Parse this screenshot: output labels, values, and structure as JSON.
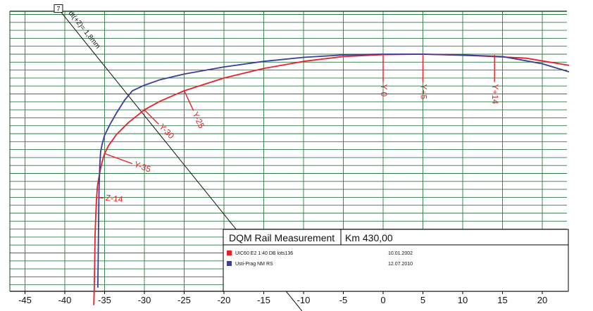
{
  "chart_data": {
    "type": "line",
    "x_ticks": [
      -45,
      -40,
      -35,
      -30,
      -25,
      -20,
      -15,
      -10,
      -5,
      0,
      5,
      10,
      15,
      20
    ],
    "xlim": [
      -46.5,
      23.4
    ],
    "ylim": [
      -32.5,
      5.5
    ],
    "x_gridlines": [
      -45,
      -40,
      -35,
      -30,
      -25,
      -20,
      -15,
      -10,
      -5,
      0,
      5,
      10,
      15,
      20
    ],
    "y_gridlines": [
      5,
      4,
      3,
      2,
      1,
      0,
      -1,
      -2,
      -3,
      -4,
      -5,
      -6,
      -7,
      -8,
      -9,
      -10,
      -11,
      -12,
      -13,
      -14,
      -15,
      -16,
      -17,
      -18,
      -19,
      -20,
      -21,
      -22,
      -23,
      -24,
      -25,
      -26,
      -27,
      -28,
      -29,
      -30,
      -31,
      -32
    ],
    "grid": true,
    "series": [
      {
        "name": "UIC60 E2 1:40 DB lots136",
        "color": "#e8202a",
        "date": "10.01.2002",
        "x": [
          23.3,
          18,
          12,
          5,
          0,
          -5,
          -10,
          -15,
          -20,
          -25,
          -28,
          -30,
          -32,
          -33.5,
          -34.5,
          -35,
          -35.3,
          -35.5,
          -35.7,
          -35.9,
          -36,
          -36.1,
          -36.2,
          -36.25,
          -36.3,
          -36.35
        ],
        "y": [
          -1.4,
          -0.5,
          -0.2,
          0,
          -0.05,
          -0.3,
          -0.9,
          -1.8,
          -3,
          -4.6,
          -5.9,
          -7,
          -8.6,
          -10.1,
          -11.5,
          -12.5,
          -13.5,
          -14.4,
          -15.4,
          -16.6,
          -18,
          -20,
          -23,
          -26.5,
          -29.5,
          -31.5
        ]
      },
      {
        "name": "Usti-Prag NM RS",
        "color": "#3a3d9a",
        "date": "12.07.2010",
        "x": [
          23.3,
          20,
          15,
          10,
          5,
          0,
          -5,
          -10,
          -15,
          -20,
          -25,
          -28,
          -30,
          -31.5,
          -32.5,
          -33.5,
          -34.3,
          -35,
          -35.3,
          -35.5,
          -35.6,
          -35.7,
          -35.75,
          -35.8,
          -35.85
        ],
        "y": [
          -2.2,
          -1.2,
          -0.3,
          -0.1,
          0,
          0,
          -0.1,
          -0.4,
          -0.9,
          -1.6,
          -2.5,
          -3.2,
          -3.9,
          -4.6,
          -5.8,
          -7.4,
          -8.8,
          -10.2,
          -11.3,
          -12.3,
          -14,
          -17,
          -21,
          -25,
          -29.3
        ]
      }
    ],
    "annotations": [
      {
        "text": "Y-0",
        "x": 0,
        "y": 0,
        "rotate": 90,
        "tick_to": -3.5
      },
      {
        "text": "Y+5",
        "x": 5,
        "y": 0,
        "rotate": 90,
        "tick_to": -3.5
      },
      {
        "text": "Y+14",
        "x": 14,
        "y": -0.1,
        "rotate": 90,
        "tick_to": -3.5
      },
      {
        "text": "Y-25",
        "x": -25,
        "y": -4.6,
        "rotate": 65,
        "tick_to": -7.1
      },
      {
        "text": "Y-30",
        "x": -30,
        "y": -7,
        "rotate": 45,
        "tick_to": -8.8
      },
      {
        "text": "Y-35",
        "x": -35,
        "y": -12.5,
        "rotate": 20,
        "tick_to": -13.8
      },
      {
        "text": "Z-14",
        "x": -36,
        "y": -18,
        "rotate": 6,
        "tick_to": -18.3
      }
    ],
    "slope_line": {
      "label": "dt(+2)= 1,8mm",
      "x1": -40.8,
      "y1": 5.7,
      "x2": -10.2,
      "y2": -32.3,
      "box_label": "7"
    },
    "info_box": {
      "title": "DQM Rail Measurement",
      "km": "Km 430,00"
    }
  }
}
